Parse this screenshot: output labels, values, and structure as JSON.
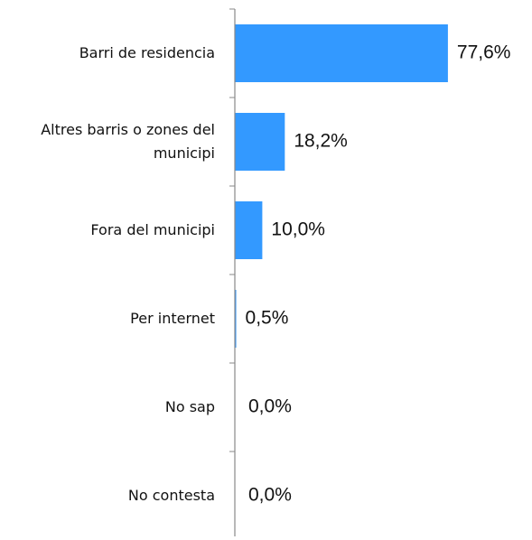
{
  "chart_data": {
    "type": "bar",
    "orientation": "horizontal",
    "categories": [
      "Barri de residencia",
      "Altres barris o zones del municipi",
      "Fora del municipi",
      "Per internet",
      "No sap",
      "No contesta"
    ],
    "values": [
      77.6,
      18.2,
      10.0,
      0.5,
      0.0,
      0.0
    ],
    "value_labels": [
      "77,6%",
      "18,2%",
      "10,0%",
      "0,5%",
      "0,0%",
      "0,0%"
    ],
    "color": "#3399ff",
    "xlim": [
      0,
      100
    ]
  }
}
